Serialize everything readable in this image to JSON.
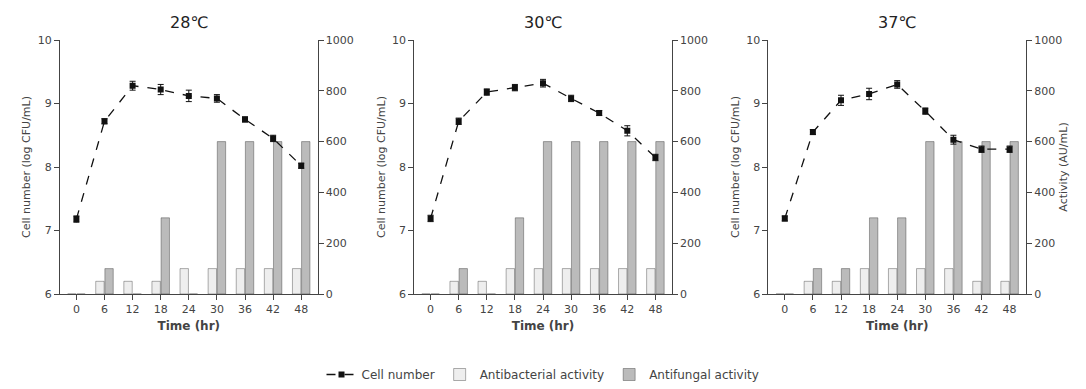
{
  "chart_data": [
    {
      "type": "bar",
      "title": "28℃",
      "x": [
        0,
        6,
        12,
        18,
        24,
        30,
        36,
        42,
        48
      ],
      "xlabel": "Time (hr)",
      "ylabel": "Cell number (log CFU/mL)",
      "xlim": [
        -3.5,
        51.5
      ],
      "xticks": [
        0,
        6,
        12,
        18,
        24,
        30,
        36,
        42,
        48
      ],
      "ylim": [
        6,
        10
      ],
      "yticks": [
        6,
        7,
        8,
        9,
        10
      ],
      "y2lim": [
        0,
        1000
      ],
      "y2ticks": [
        0,
        200,
        400,
        600,
        800,
        1000
      ],
      "grid": false,
      "legend": "bottom",
      "series": [
        {
          "name": "Cell number",
          "type": "line",
          "color": "#111111",
          "marker": "square",
          "line_style": "dashed",
          "values": [
            7.18,
            8.72,
            9.28,
            9.22,
            9.12,
            9.08,
            8.75,
            8.45,
            8.02
          ],
          "errors": [
            0.05,
            0.04,
            0.07,
            0.08,
            0.09,
            0.06,
            0.04,
            0.05,
            0.04
          ]
        },
        {
          "name": "Antibacterial activity",
          "type": "bar",
          "axis": "y2",
          "color": "#eeeeee",
          "values": [
            0,
            50,
            50,
            50,
            100,
            100,
            100,
            100,
            100
          ]
        },
        {
          "name": "Antifungal activity",
          "type": "bar",
          "axis": "y2",
          "color": "#bbbbbb",
          "values": [
            0,
            100,
            0,
            300,
            0,
            600,
            600,
            600,
            600
          ]
        }
      ]
    },
    {
      "type": "bar",
      "title": "30℃",
      "x": [
        0,
        6,
        12,
        18,
        24,
        30,
        36,
        42,
        48
      ],
      "xlabel": "Time (hr)",
      "ylabel": "Cell number (log CFU/mL)",
      "xlim": [
        -3.5,
        51.5
      ],
      "xticks": [
        0,
        6,
        12,
        18,
        24,
        30,
        36,
        42,
        48
      ],
      "ylim": [
        6,
        10
      ],
      "yticks": [
        6,
        7,
        8,
        9,
        10
      ],
      "y2lim": [
        0,
        1000
      ],
      "y2ticks": [
        0,
        200,
        400,
        600,
        800,
        1000
      ],
      "grid": false,
      "legend": "bottom",
      "series": [
        {
          "name": "Cell number",
          "type": "line",
          "color": "#111111",
          "marker": "square",
          "line_style": "dashed",
          "values": [
            7.19,
            8.72,
            9.18,
            9.25,
            9.32,
            9.08,
            8.85,
            8.57,
            8.15
          ],
          "errors": [
            0.05,
            0.05,
            0.05,
            0.05,
            0.06,
            0.05,
            0.04,
            0.08,
            0.05
          ]
        },
        {
          "name": "Antibacterial activity",
          "type": "bar",
          "axis": "y2",
          "color": "#eeeeee",
          "values": [
            0,
            50,
            50,
            100,
            100,
            100,
            100,
            100,
            100
          ]
        },
        {
          "name": "Antifungal activity",
          "type": "bar",
          "axis": "y2",
          "color": "#bbbbbb",
          "values": [
            0,
            100,
            0,
            300,
            600,
            600,
            600,
            600,
            600
          ]
        }
      ]
    },
    {
      "type": "bar",
      "title": "37℃",
      "x": [
        0,
        6,
        12,
        18,
        24,
        30,
        36,
        42,
        48
      ],
      "xlabel": "Time (hr)",
      "ylabel": "Cell number (log CFU/mL)",
      "y2label": "Activity (AU/mL)",
      "xlim": [
        -3.5,
        51.5
      ],
      "xticks": [
        0,
        6,
        12,
        18,
        24,
        30,
        36,
        42,
        48
      ],
      "ylim": [
        6,
        10
      ],
      "yticks": [
        6,
        7,
        8,
        9,
        10
      ],
      "y2lim": [
        0,
        1000
      ],
      "y2ticks": [
        0,
        200,
        400,
        600,
        800,
        1000
      ],
      "grid": false,
      "legend": "bottom",
      "series": [
        {
          "name": "Cell number",
          "type": "line",
          "color": "#111111",
          "marker": "square",
          "line_style": "dashed",
          "values": [
            7.19,
            8.55,
            9.05,
            9.15,
            9.3,
            8.88,
            8.43,
            8.28,
            8.28
          ],
          "errors": [
            0.04,
            0.04,
            0.08,
            0.09,
            0.06,
            0.05,
            0.07,
            0.05,
            0.05
          ]
        },
        {
          "name": "Antibacterial activity",
          "type": "bar",
          "axis": "y2",
          "color": "#eeeeee",
          "values": [
            0,
            50,
            50,
            100,
            100,
            100,
            100,
            50,
            50
          ]
        },
        {
          "name": "Antifungal activity",
          "type": "bar",
          "axis": "y2",
          "color": "#bbbbbb",
          "values": [
            0,
            100,
            100,
            300,
            300,
            600,
            600,
            600,
            600
          ]
        }
      ]
    }
  ]
}
